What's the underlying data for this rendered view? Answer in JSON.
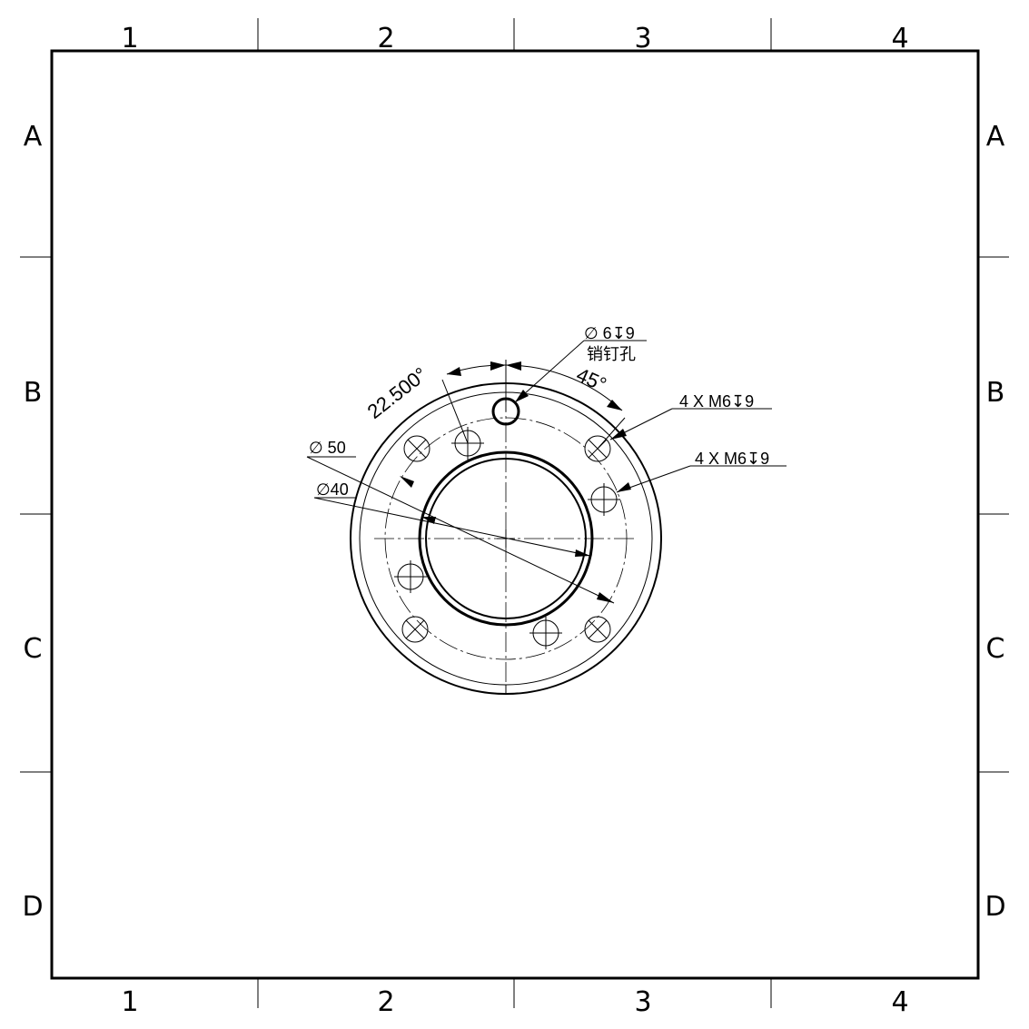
{
  "sheet": {
    "column_labels": [
      "1",
      "2",
      "3",
      "4"
    ],
    "row_labels": [
      "A",
      "B",
      "C",
      "D"
    ]
  },
  "annotations": {
    "pin_hole_spec": "∅ 6↧9",
    "pin_hole_name": "销钉孔",
    "angle_small": "22.500°",
    "angle_large": "45°",
    "thread_callout_1": "4 X M6↧9",
    "thread_callout_2": "4 X M6↧9",
    "diameter_outer": "∅ 50",
    "diameter_inner": "∅40"
  }
}
